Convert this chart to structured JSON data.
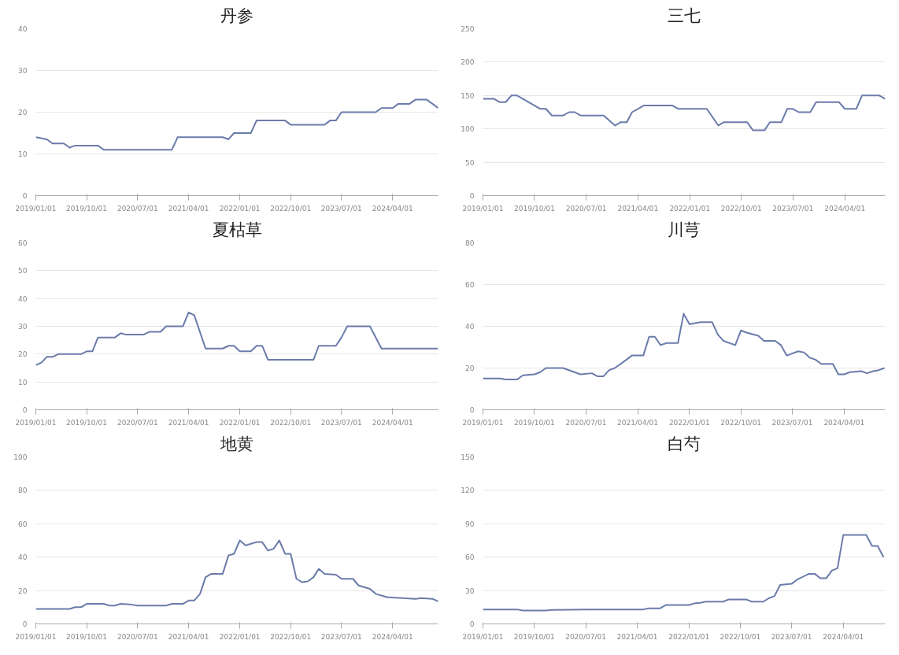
{
  "chart_data": [
    {
      "type": "line",
      "title": "丹参",
      "xlim": [
        "2019-01-01",
        "2024-12-01"
      ],
      "ylim": [
        0,
        40
      ],
      "yticks": [
        0,
        10,
        20,
        30,
        40
      ],
      "grid": "y",
      "xticks": [
        {
          "value": "2019-01-01",
          "label": "2019/01/01"
        },
        {
          "value": "2019-10-01",
          "label": "2019/10/01"
        },
        {
          "value": "2020-07-01",
          "label": "2020/07/01"
        },
        {
          "value": "2021-04-01",
          "label": "2021/04/01"
        },
        {
          "value": "2022-01-01",
          "label": "2022/01/01"
        },
        {
          "value": "2022-10-01",
          "label": "2022/10/01"
        },
        {
          "value": "2023-07-01",
          "label": "2023/07/01"
        },
        {
          "value": "2024-04-01",
          "label": "2024/04/01"
        }
      ],
      "series": [
        {
          "color": "#6b7bab",
          "x": [
            "2019-01",
            "2019-03",
            "2019-04",
            "2019-06",
            "2019-07",
            "2019-08",
            "2019-12",
            "2020-01",
            "2021-01",
            "2021-02",
            "2021-10",
            "2021-11",
            "2021-12",
            "2022-03",
            "2022-04",
            "2022-09",
            "2022-10",
            "2023-04",
            "2023-05",
            "2023-06",
            "2023-07",
            "2024-01",
            "2024-02",
            "2024-04",
            "2024-05",
            "2024-07",
            "2024-08",
            "2024-10",
            "2024-11",
            "2024-12"
          ],
          "values": [
            14,
            13.5,
            12.5,
            12.5,
            11.5,
            12,
            12,
            11,
            11,
            14,
            14,
            13.5,
            15,
            15,
            18,
            18,
            17,
            17,
            18,
            18,
            20,
            20,
            21,
            21,
            22,
            22,
            23,
            23,
            22,
            21
          ]
        }
      ]
    },
    {
      "type": "line",
      "title": "三七",
      "xlim": [
        "2019-01-01",
        "2024-11-01"
      ],
      "ylim": [
        0,
        250
      ],
      "yticks": [
        0,
        50,
        100,
        150,
        200,
        250
      ],
      "grid": "y",
      "xticks": [
        {
          "value": "2019-01-01",
          "label": "2019/01/01"
        },
        {
          "value": "2019-10-01",
          "label": "2019/10/01"
        },
        {
          "value": "2020-07-01",
          "label": "2020/07/01"
        },
        {
          "value": "2021-04-01",
          "label": "2021/04/01"
        },
        {
          "value": "2022-01-01",
          "label": "2022/01/01"
        },
        {
          "value": "2022-10-01",
          "label": "2022/10/01"
        },
        {
          "value": "2023-07-01",
          "label": "2023/07/01"
        },
        {
          "value": "2024-04-01",
          "label": "2024/04/01"
        }
      ],
      "series": [
        {
          "color": "#6b7bab",
          "x": [
            "2019-01",
            "2019-03",
            "2019-04",
            "2019-05",
            "2019-06",
            "2019-07",
            "2019-11",
            "2019-12",
            "2020-01",
            "2020-03",
            "2020-04",
            "2020-05",
            "2020-06",
            "2020-10",
            "2020-12",
            "2021-01",
            "2021-02",
            "2021-03",
            "2021-04",
            "2021-05",
            "2021-10",
            "2021-11",
            "2022-04",
            "2022-06",
            "2022-07",
            "2022-11",
            "2022-12",
            "2023-02",
            "2023-03",
            "2023-05",
            "2023-06",
            "2023-07",
            "2023-08",
            "2023-10",
            "2023-11",
            "2024-03",
            "2024-04",
            "2024-06",
            "2024-07",
            "2024-10",
            "2024-11"
          ],
          "values": [
            145,
            145,
            140,
            140,
            150,
            150,
            130,
            130,
            120,
            120,
            125,
            125,
            120,
            120,
            105,
            110,
            110,
            125,
            130,
            135,
            135,
            130,
            130,
            105,
            110,
            110,
            98,
            98,
            110,
            110,
            130,
            130,
            125,
            125,
            140,
            140,
            130,
            130,
            150,
            150,
            145
          ]
        }
      ]
    },
    {
      "type": "line",
      "title": "夏枯草",
      "xlim": [
        "2019-01-01",
        "2024-12-01"
      ],
      "ylim": [
        0,
        60
      ],
      "yticks": [
        0,
        10,
        20,
        30,
        40,
        50,
        60
      ],
      "grid": "y",
      "xticks": [
        {
          "value": "2019-01-01",
          "label": "2019/01/01"
        },
        {
          "value": "2019-10-01",
          "label": "2019/10/01"
        },
        {
          "value": "2020-07-01",
          "label": "2020/07/01"
        },
        {
          "value": "2021-04-01",
          "label": "2021/04/01"
        },
        {
          "value": "2022-01-01",
          "label": "2022/01/01"
        },
        {
          "value": "2022-10-01",
          "label": "2022/10/01"
        },
        {
          "value": "2023-07-01",
          "label": "2023/07/01"
        },
        {
          "value": "2024-04-01",
          "label": "2024/04/01"
        }
      ],
      "series": [
        {
          "color": "#6b7bab",
          "x": [
            "2019-01",
            "2019-02",
            "2019-03",
            "2019-04",
            "2019-05",
            "2019-09",
            "2019-10",
            "2019-11",
            "2019-12",
            "2020-03",
            "2020-04",
            "2020-05",
            "2020-08",
            "2020-09",
            "2020-11",
            "2020-12",
            "2021-03",
            "2021-04",
            "2021-05",
            "2021-07",
            "2021-10",
            "2021-11",
            "2021-12",
            "2022-01",
            "2022-03",
            "2022-04",
            "2022-05",
            "2022-06",
            "2023-02",
            "2023-03",
            "2023-06",
            "2023-07",
            "2023-08",
            "2023-12",
            "2024-02",
            "2024-12"
          ],
          "values": [
            16,
            17,
            19,
            19,
            20,
            20,
            21,
            21,
            26,
            26,
            27.5,
            27,
            27,
            28,
            28,
            30,
            30,
            35,
            34,
            22,
            22,
            23,
            23,
            21,
            21,
            23,
            23,
            18,
            18,
            23,
            23,
            26,
            30,
            30,
            22,
            22
          ]
        }
      ]
    },
    {
      "type": "line",
      "title": "川芎",
      "xlim": [
        "2019-01-01",
        "2024-11-05"
      ],
      "ylim": [
        0,
        80
      ],
      "yticks": [
        0,
        20,
        40,
        60,
        80
      ],
      "grid": "y",
      "xticks": [
        {
          "value": "2019-01-01",
          "label": "2019/01/01"
        },
        {
          "value": "2019-10-01",
          "label": "2019/10/01"
        },
        {
          "value": "2020-07-01",
          "label": "2020/07/01"
        },
        {
          "value": "2021-04-01",
          "label": "2021/04/01"
        },
        {
          "value": "2022-01-01",
          "label": "2022/01/01"
        },
        {
          "value": "2022-10-01",
          "label": "2022/10/01"
        },
        {
          "value": "2023-07-01",
          "label": "2023/07/01"
        },
        {
          "value": "2024-04-01",
          "label": "2024/04/01"
        }
      ],
      "series": [
        {
          "color": "#6b7bab",
          "x": [
            "2019-01",
            "2019-04",
            "2019-05",
            "2019-07",
            "2019-08",
            "2019-10",
            "2019-11",
            "2019-12",
            "2020-03",
            "2020-05",
            "2020-06",
            "2020-08",
            "2020-09",
            "2020-10",
            "2020-11",
            "2020-12",
            "2021-02",
            "2021-03",
            "2021-05",
            "2021-06",
            "2021-07",
            "2021-08",
            "2021-09",
            "2021-11",
            "2021-12",
            "2022-01",
            "2022-03",
            "2022-05",
            "2022-06",
            "2022-07",
            "2022-09",
            "2022-10",
            "2022-11",
            "2023-01",
            "2023-02",
            "2023-04",
            "2023-05",
            "2023-06",
            "2023-08",
            "2023-09",
            "2023-10",
            "2023-11",
            "2023-12",
            "2024-02",
            "2024-03",
            "2024-04",
            "2024-05",
            "2024-07",
            "2024-08",
            "2024-09",
            "2024-10",
            "2024-11"
          ],
          "values": [
            15,
            15,
            14.5,
            14.5,
            16.5,
            17,
            18,
            20,
            20,
            18,
            17,
            17.5,
            16,
            16,
            19,
            20,
            24,
            26,
            26,
            35,
            35,
            31,
            32,
            32,
            46,
            41,
            42,
            42,
            36,
            33,
            31,
            38,
            37,
            35.5,
            33,
            33,
            31,
            26,
            28,
            27.5,
            25,
            24,
            22,
            22,
            17,
            17,
            18,
            18.5,
            17.5,
            18.5,
            19,
            20
          ]
        }
      ]
    },
    {
      "type": "line",
      "title": "地黄",
      "xlim": [
        "2019-01-01",
        "2024-12-01"
      ],
      "ylim": [
        0,
        100
      ],
      "yticks": [
        0,
        20,
        40,
        60,
        80,
        100
      ],
      "grid": "y",
      "xticks": [
        {
          "value": "2019-01-01",
          "label": "2019/01/01"
        },
        {
          "value": "2019-10-01",
          "label": "2019/10/01"
        },
        {
          "value": "2020-07-01",
          "label": "2020/07/01"
        },
        {
          "value": "2021-04-01",
          "label": "2021/04/01"
        },
        {
          "value": "2022-01-01",
          "label": "2022/01/01"
        },
        {
          "value": "2022-10-01",
          "label": "2022/10/01"
        },
        {
          "value": "2023-07-01",
          "label": "2023/07/01"
        },
        {
          "value": "2024-04-01",
          "label": "2024/04/01"
        }
      ],
      "series": [
        {
          "color": "#6b7bab",
          "x": [
            "2019-01",
            "2019-07",
            "2019-08",
            "2019-09",
            "2019-10",
            "2020-01",
            "2020-02",
            "2020-03",
            "2020-04",
            "2020-06",
            "2020-07",
            "2020-12",
            "2021-01",
            "2021-03",
            "2021-04",
            "2021-05",
            "2021-06",
            "2021-07",
            "2021-08",
            "2021-10",
            "2021-11",
            "2021-12",
            "2022-01",
            "2022-02",
            "2022-03",
            "2022-04",
            "2022-05",
            "2022-06",
            "2022-07",
            "2022-08",
            "2022-09",
            "2022-10",
            "2022-11",
            "2022-12",
            "2023-01",
            "2023-02",
            "2023-03",
            "2023-04",
            "2023-06",
            "2023-07",
            "2023-09",
            "2023-10",
            "2023-12",
            "2024-01",
            "2024-03",
            "2024-08",
            "2024-09",
            "2024-11",
            "2024-12"
          ],
          "values": [
            9,
            9,
            10,
            10,
            12,
            12,
            11,
            11,
            12,
            11.5,
            11,
            11,
            12,
            12,
            14,
            14,
            18,
            28,
            30,
            30,
            41,
            42,
            50,
            47,
            48,
            49,
            49,
            44,
            45,
            50,
            42,
            42,
            27,
            25,
            25.5,
            28,
            33,
            30,
            29.5,
            27,
            27,
            23,
            21,
            18,
            16,
            15,
            15.5,
            15,
            13.5
          ]
        }
      ]
    },
    {
      "type": "line",
      "title": "白芍",
      "xlim": [
        "2019-01-01",
        "2024-11-10"
      ],
      "ylim": [
        0,
        150
      ],
      "yticks": [
        0,
        30,
        60,
        90,
        120,
        150
      ],
      "grid": "y",
      "xticks": [
        {
          "value": "2019-01-01",
          "label": "2019/01/01"
        },
        {
          "value": "2019-10-01",
          "label": "2019/10/01"
        },
        {
          "value": "2020-07-01",
          "label": "2020/07/01"
        },
        {
          "value": "2021-04-01",
          "label": "2021/04/01"
        },
        {
          "value": "2022-01-01",
          "label": "2022/01/01"
        },
        {
          "value": "2022-10-01",
          "label": "2022/10/01"
        },
        {
          "value": "2023-07-01",
          "label": "2023/07/01"
        },
        {
          "value": "2024-04-01",
          "label": "2024/04/01"
        }
      ],
      "series": [
        {
          "color": "#6b7bab",
          "x": [
            "2019-01",
            "2019-07",
            "2019-08",
            "2019-12",
            "2020-01",
            "2020-07",
            "2021-05",
            "2021-06",
            "2021-08",
            "2021-09",
            "2022-01",
            "2022-02",
            "2022-03",
            "2022-04",
            "2022-07",
            "2022-08",
            "2022-11",
            "2022-12",
            "2023-02",
            "2023-03",
            "2023-04",
            "2023-05",
            "2023-07",
            "2023-08",
            "2023-10",
            "2023-11",
            "2023-12",
            "2024-01",
            "2024-02",
            "2024-03",
            "2024-04",
            "2024-08",
            "2024-09",
            "2024-10",
            "2024-11"
          ],
          "values": [
            13,
            13,
            12,
            12,
            12.5,
            13,
            13,
            14,
            14,
            17,
            17,
            18.5,
            19,
            20,
            20,
            22,
            22,
            20,
            20,
            23,
            25,
            35,
            36,
            40,
            45,
            45,
            41,
            41,
            48,
            50,
            80,
            80,
            70,
            70,
            60
          ]
        }
      ]
    }
  ]
}
